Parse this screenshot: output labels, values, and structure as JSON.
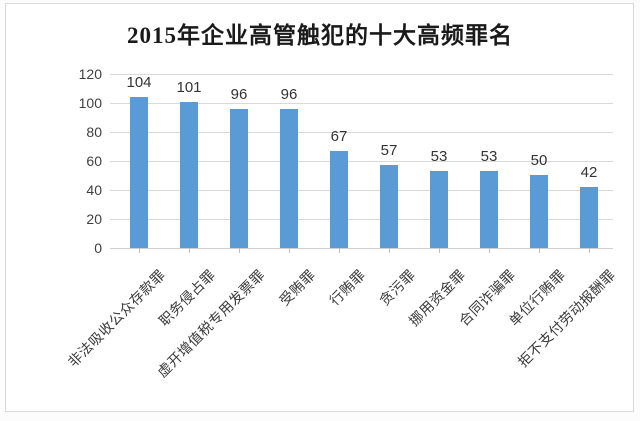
{
  "chart_data": {
    "type": "bar",
    "title": "2015年企业高管触犯的十大高频罪名",
    "categories": [
      "非法吸收公众存款罪",
      "职务侵占罪",
      "虚开增值税专用发票罪",
      "受贿罪",
      "行贿罪",
      "贪污罪",
      "挪用资金罪",
      "合同诈骗罪",
      "单位行贿罪",
      "拒不支付劳动报酬罪"
    ],
    "values": [
      104,
      101,
      96,
      96,
      67,
      57,
      53,
      53,
      50,
      42
    ],
    "y_ticks": [
      0,
      20,
      40,
      60,
      80,
      100,
      120
    ],
    "ylim": [
      0,
      120
    ],
    "xlabel": "",
    "ylabel": "",
    "grid": true,
    "legend": "none",
    "data_labels": "outside-end",
    "colors": {
      "bar": "#5b9bd5",
      "gridline": "#d9d9d9",
      "baseline": "#cfcfcf",
      "tick_mark": "#bfbfbf",
      "axis_text": "#404040",
      "value_label": "#333333",
      "category_label": "#3a3a3a",
      "title": "#1a1a1a",
      "frame_border": "#d9d9d9",
      "plot_background": "#ffffff"
    }
  }
}
